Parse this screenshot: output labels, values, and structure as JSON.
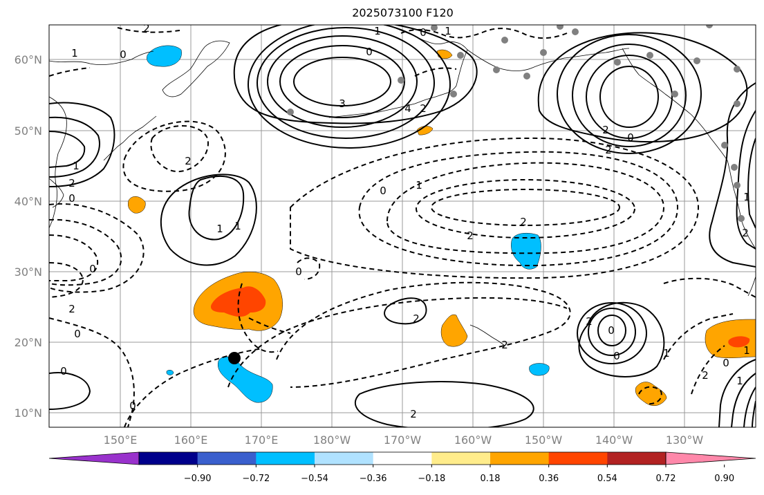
{
  "title": "2025073100 F120",
  "lat_labels": [
    "60°N",
    "50°N",
    "40°N",
    "30°N",
    "20°N",
    "10°N"
  ],
  "lon_labels": [
    "150°E",
    "160°E",
    "170°E",
    "180°W",
    "170°W",
    "160°W",
    "150°W",
    "140°W",
    "130°W"
  ],
  "colorbar": {
    "ticks": [
      "−0.90",
      "−0.72",
      "−0.54",
      "−0.36",
      "−0.18",
      "0.18",
      "0.36",
      "0.54",
      "0.72",
      "0.90"
    ],
    "colors": [
      "#9932cc",
      "#00008b",
      "#3a5fcd",
      "#00bfff",
      "#b0e2ff",
      "#ffffff",
      "#ffec8b",
      "#ffa500",
      "#ff4500",
      "#b22222",
      "#ff88aa"
    ]
  },
  "contour_labels": [
    "1",
    "0",
    "2",
    "1",
    "0",
    "1",
    "0",
    "3",
    "4",
    "2",
    "2",
    "1",
    "2",
    "0",
    "0",
    "1",
    "2",
    "0",
    "2",
    "2",
    "2",
    "1",
    "2",
    "0",
    "2",
    "0",
    "1",
    "1",
    "0",
    "2",
    "2",
    "0",
    "0",
    "2",
    "1",
    "1",
    "0",
    "2",
    "1",
    "0",
    "0",
    "2"
  ],
  "colors": {
    "positive_shade": "#ffa500",
    "strong_positive_shade": "#ff4500",
    "negative_shade": "#00bfff",
    "station_dots": "#808080",
    "marker": "#000000"
  }
}
